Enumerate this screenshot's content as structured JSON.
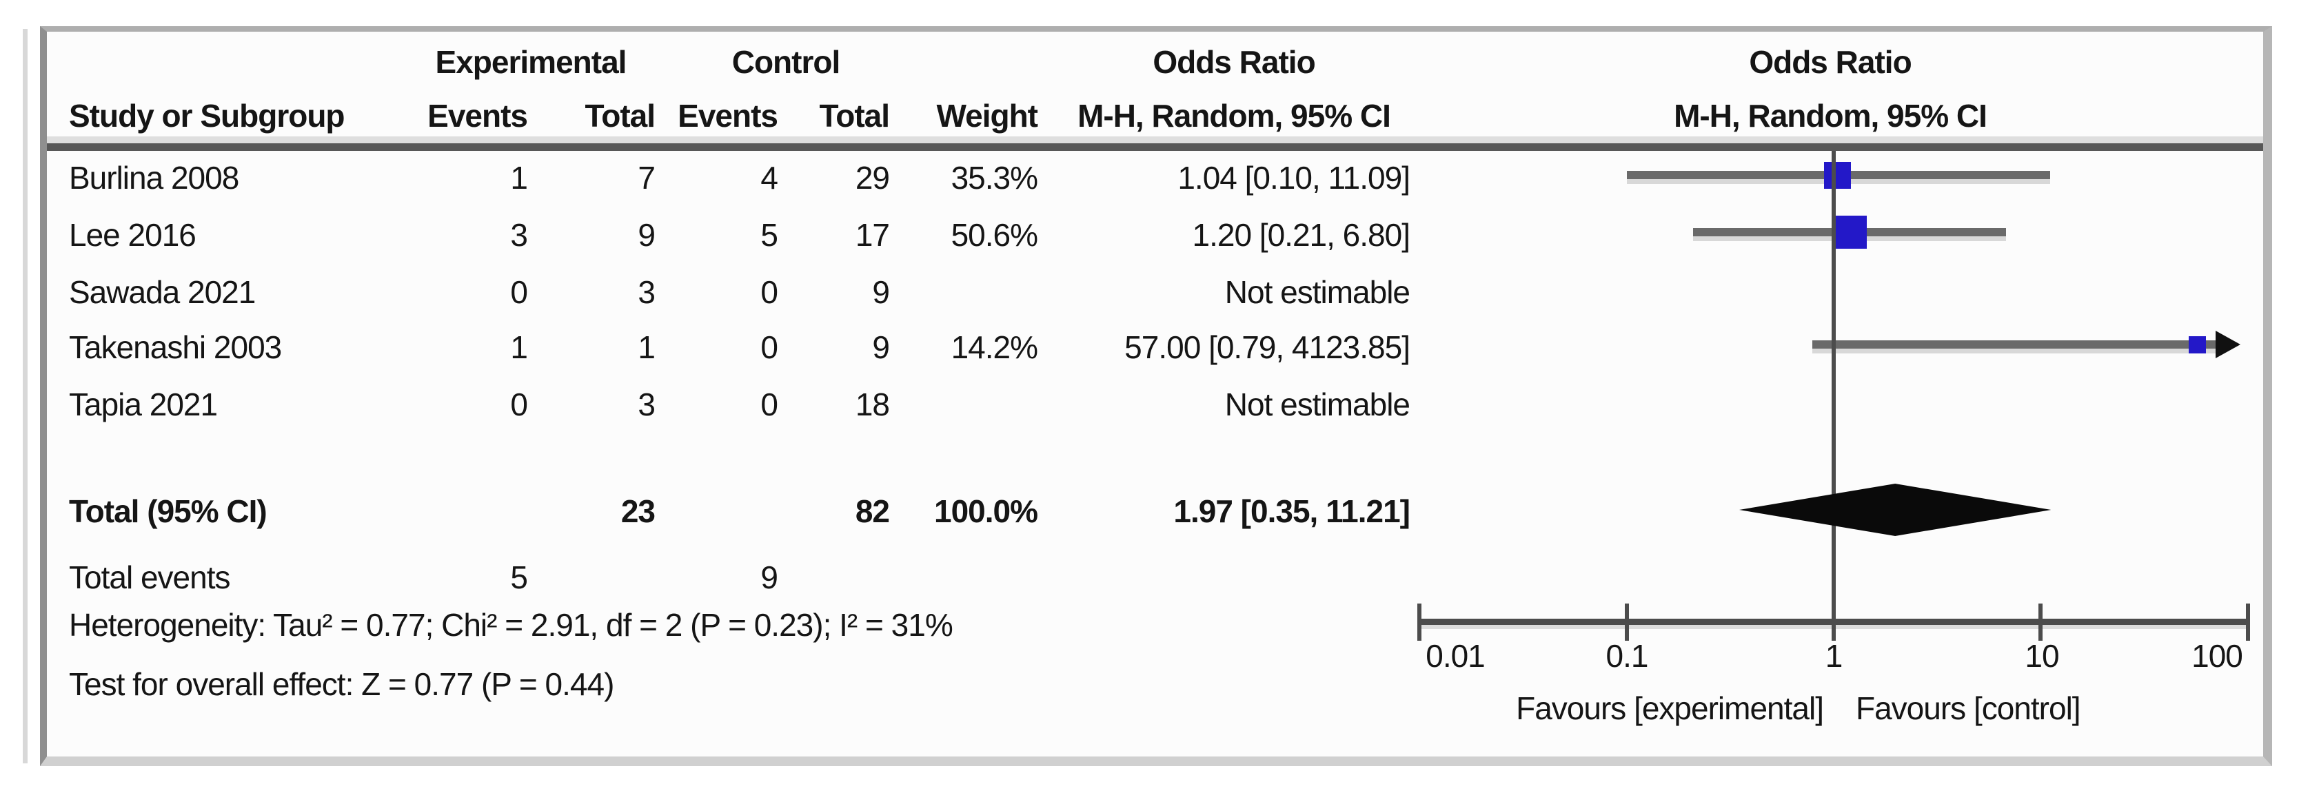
{
  "table": {
    "group_headers": {
      "experimental": "Experimental",
      "control": "Control",
      "odds_ratio_text": "Odds Ratio",
      "odds_ratio_plot": "Odds Ratio"
    },
    "column_headers": {
      "study": "Study or Subgroup",
      "events_experimental": "Events",
      "total_experimental": "Total",
      "events_control": "Events",
      "total_control": "Total",
      "weight": "Weight",
      "mh_text": "M-H, Random, 95% CI",
      "mh_plot": "M-H, Random, 95% CI"
    },
    "rows": [
      {
        "study": "Burlina 2008",
        "e1": "1",
        "t1": "7",
        "e2": "4",
        "t2": "29",
        "weight": "35.3%",
        "or": "1.04 [0.10, 11.09]"
      },
      {
        "study": "Lee 2016",
        "e1": "3",
        "t1": "9",
        "e2": "5",
        "t2": "17",
        "weight": "50.6%",
        "or": "1.20 [0.21, 6.80]"
      },
      {
        "study": "Sawada 2021",
        "e1": "0",
        "t1": "3",
        "e2": "0",
        "t2": "9",
        "weight": "",
        "or": "Not estimable"
      },
      {
        "study": "Takenashi 2003",
        "e1": "1",
        "t1": "1",
        "e2": "0",
        "t2": "9",
        "weight": "14.2%",
        "or": "57.00 [0.79, 4123.85]"
      },
      {
        "study": "Tapia 2021",
        "e1": "0",
        "t1": "3",
        "e2": "0",
        "t2": "18",
        "weight": "",
        "or": "Not estimable"
      }
    ],
    "total_row": {
      "label": "Total (95% CI)",
      "t1": "23",
      "t2": "82",
      "weight": "100.0%",
      "or": "1.97 [0.35, 11.21]"
    },
    "total_events": {
      "label": "Total events",
      "e1": "5",
      "e2": "9"
    },
    "heterogeneity": "Heterogeneity: Tau² = 0.77; Chi² = 2.91, df = 2 (P = 0.23); I² = 31%",
    "overall_effect": "Test for overall effect: Z = 0.77 (P = 0.44)"
  },
  "chart_data": {
    "type": "forest",
    "title": "Odds Ratio",
    "effect_model": "M-H, Random, 95% CI",
    "x_scale": "log10",
    "x_min": 0.01,
    "x_max": 100,
    "null_line_value": 1,
    "x_ticks": [
      0.01,
      0.1,
      1,
      10,
      100
    ],
    "x_tick_labels": [
      "0.01",
      "0.1",
      "1",
      "10",
      "100"
    ],
    "studies": [
      {
        "name": "Burlina 2008",
        "or": 1.04,
        "ci_low": 0.1,
        "ci_high": 11.09,
        "weight_pct": 35.3
      },
      {
        "name": "Lee 2016",
        "or": 1.2,
        "ci_low": 0.21,
        "ci_high": 6.8,
        "weight_pct": 50.6
      },
      {
        "name": "Sawada 2021",
        "or": null,
        "ci_low": null,
        "ci_high": null,
        "weight_pct": null,
        "note": "Not estimable"
      },
      {
        "name": "Takenashi 2003",
        "or": 57.0,
        "ci_low": 0.79,
        "ci_high": 4123.85,
        "weight_pct": 14.2
      },
      {
        "name": "Tapia 2021",
        "or": null,
        "ci_low": null,
        "ci_high": null,
        "weight_pct": null,
        "note": "Not estimable"
      }
    ],
    "total": {
      "label": "Total (95% CI)",
      "or": 1.97,
      "ci_low": 0.35,
      "ci_high": 11.21,
      "weight_pct": 100.0
    },
    "favours_left": "Favours [experimental]",
    "favours_right": "Favours [control]",
    "marker_color": "#2318c8",
    "diamond_color": "#0a0a0a",
    "legend_position": "none",
    "grid": false
  }
}
